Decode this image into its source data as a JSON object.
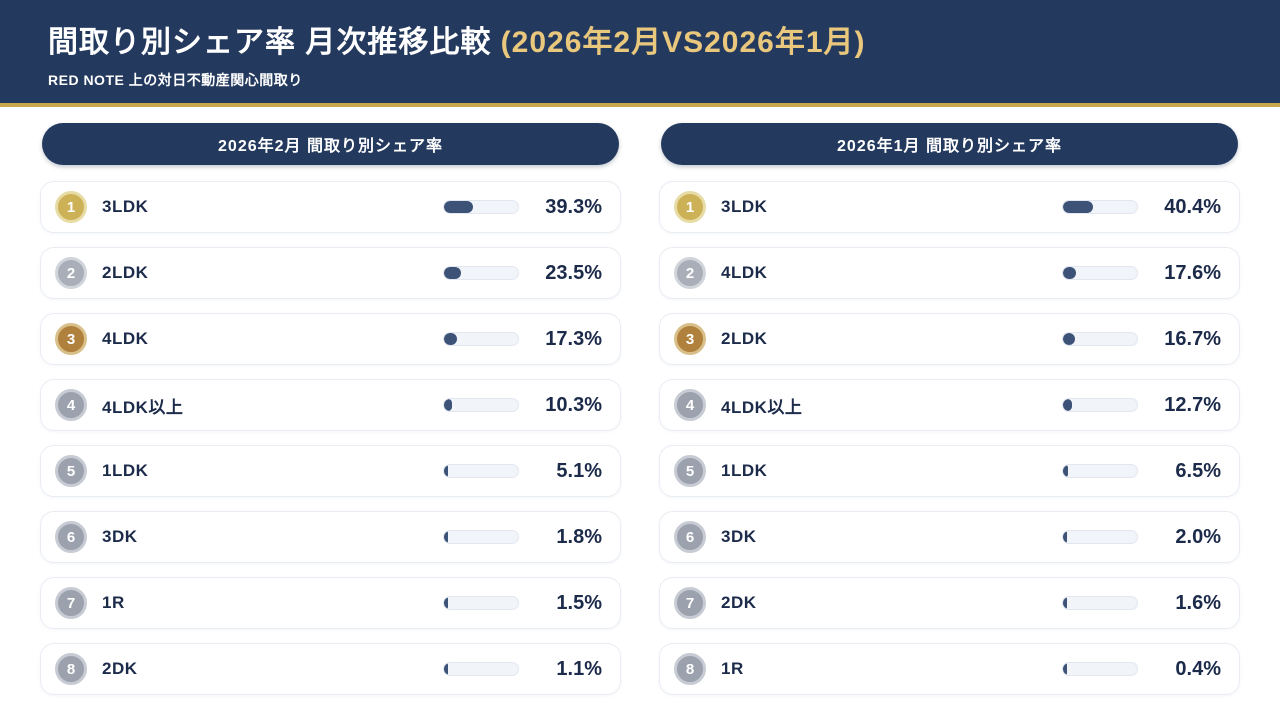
{
  "header": {
    "title": "間取り別シェア率 月次推移比較 ",
    "title_highlight": "(2026年2月VS2026年1月)",
    "subtitle": "RED NOTE 上の対日不動産関心間取り"
  },
  "colors": {
    "navy": "#24395e",
    "gold_line": "#c9a84c",
    "gold_text": "#e9c87e",
    "text_dark": "#1c2b4a",
    "bar_fill": "#3c5277",
    "bar_track": "#f1f4f9",
    "card_border": "#e9edf3",
    "badge_gold": "#cdb157",
    "badge_gold_ring": "#e7dca6",
    "badge_silver": "#a9aeb9",
    "badge_silver_ring": "#d0d4db",
    "badge_bronze": "#b0813c",
    "badge_bronze_ring": "#d9c08b",
    "badge_gray": "#9ba1ad",
    "badge_gray_ring": "#c7cbd3"
  },
  "chart_data": [
    {
      "type": "bar",
      "title": "2026年2月 間取り別シェア率",
      "categories": [
        "3LDK",
        "2LDK",
        "4LDK",
        "4LDK以上",
        "1LDK",
        "3DK",
        "1R",
        "2DK"
      ],
      "values": [
        39.3,
        23.5,
        17.3,
        10.3,
        5.1,
        1.8,
        1.5,
        1.1
      ],
      "unit": "%",
      "xlim": [
        0,
        100
      ],
      "orientation": "horizontal",
      "legend": false
    },
    {
      "type": "bar",
      "title": "2026年1月 間取り別シェア率",
      "categories": [
        "3LDK",
        "4LDK",
        "2LDK",
        "4LDK以上",
        "1LDK",
        "3DK",
        "2DK",
        "1R"
      ],
      "values": [
        40.4,
        17.6,
        16.7,
        12.7,
        6.5,
        2.0,
        1.6,
        0.4
      ],
      "unit": "%",
      "xlim": [
        0,
        100
      ],
      "orientation": "horizontal",
      "legend": false
    }
  ]
}
